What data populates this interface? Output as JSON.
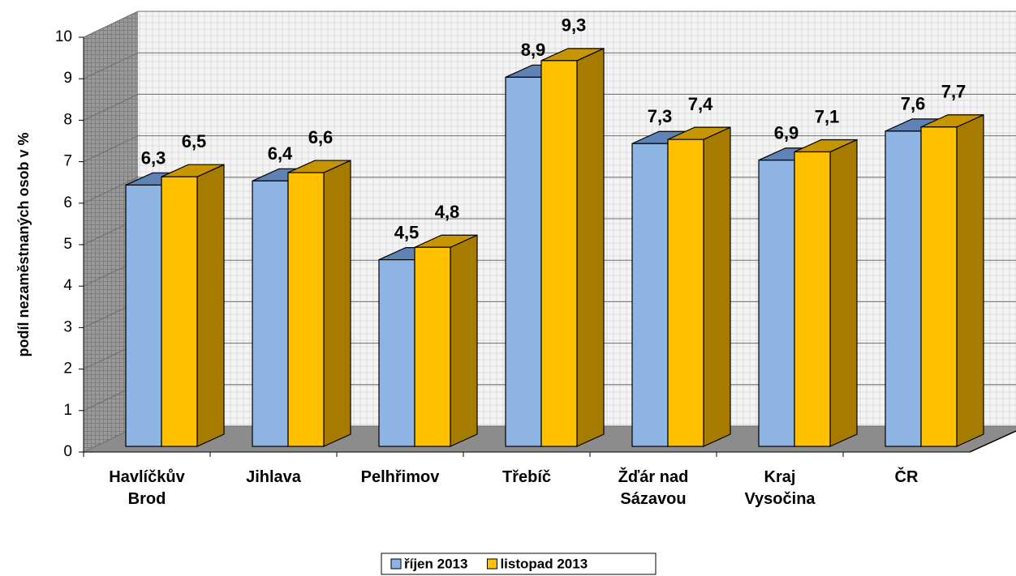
{
  "chart_data": {
    "type": "bar3d",
    "y_label": "podíl nezaměstnaných osob  v %",
    "categories": [
      "Havlíčkův Brod",
      "Jihlava",
      "Pelhřimov",
      "Třebíč",
      "Žďár nad Sázavou",
      "Kraj Vysočina",
      "ČR"
    ],
    "series": [
      {
        "name": "říjen 2013",
        "color": "#8db4e2",
        "values": [
          6.3,
          6.4,
          4.5,
          8.9,
          7.3,
          6.9,
          7.6
        ],
        "value_labels": [
          "6,3",
          "6,4",
          "4,5",
          "8,9",
          "7,3",
          "6,9",
          "7,6"
        ]
      },
      {
        "name": "listopad 2013",
        "color": "#ffc000",
        "values": [
          6.5,
          6.6,
          4.8,
          9.3,
          7.4,
          7.1,
          7.7
        ],
        "value_labels": [
          "6,5",
          "6,6",
          "4,8",
          "9,3",
          "7,4",
          "7,1",
          "7,7"
        ]
      }
    ],
    "ylim": [
      0,
      10
    ],
    "yticks": [
      0,
      1,
      2,
      3,
      4,
      5,
      6,
      7,
      8,
      9,
      10
    ],
    "grid": true,
    "legend": "bottom"
  }
}
